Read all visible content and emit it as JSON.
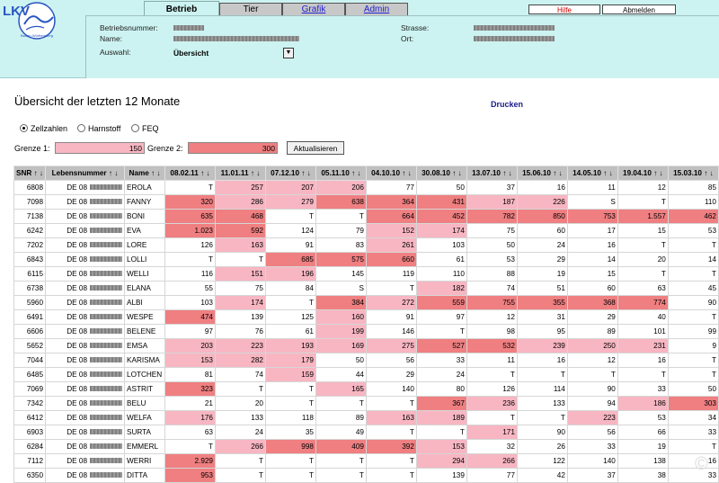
{
  "logo": {
    "text": "LKV",
    "subtext": "Baden-Württemberg"
  },
  "tabs": [
    {
      "label": "Betrieb",
      "active": true
    },
    {
      "label": "Tier",
      "active": false
    },
    {
      "label": "Grafik",
      "active": false
    },
    {
      "label": "Admin",
      "active": false
    }
  ],
  "top_buttons": {
    "hilfe": "Hilfe",
    "abmelden": "Abmelden"
  },
  "header_fields": {
    "betriebsnummer_label": "Betriebsnummer:",
    "name_label": "Name:",
    "auswahl_label": "Auswahl:",
    "strasse_label": "Strasse:",
    "ort_label": "Ort:",
    "auswahl_value": "Übersicht"
  },
  "page_title": "Übersicht der letzten 12 Monate",
  "print_link": "Drucken",
  "radios": [
    {
      "label": "Zellzahlen",
      "checked": true
    },
    {
      "label": "Harnstoff",
      "checked": false
    },
    {
      "label": "FEQ",
      "checked": false
    }
  ],
  "grenze": {
    "label1": "Grenze 1:",
    "value1": "150",
    "label2": "Grenze 2:",
    "value2": "300",
    "button": "Aktualisieren"
  },
  "table": {
    "headers": [
      "SNR ↑ ↓",
      "Lebensnummer ↑ ↓",
      "Name ↑ ↓",
      "08.02.11 ↑ ↓",
      "11.01.11 ↑ ↓",
      "07.12.10 ↑ ↓",
      "05.11.10 ↑ ↓",
      "04.10.10 ↑ ↓",
      "30.08.10 ↑ ↓",
      "13.07.10 ↑ ↓",
      "15.06.10 ↑ ↓",
      "14.05.10 ↑ ↓",
      "19.04.10 ↑ ↓",
      "15.03.10 ↑ ↓"
    ],
    "lebens_prefix": "DE 08",
    "rows": [
      [
        "6808",
        "EROLA",
        "T",
        "257",
        "207",
        "206",
        "77",
        "50",
        "37",
        "16",
        "11",
        "12",
        "85"
      ],
      [
        "7098",
        "FANNY",
        "320",
        "286",
        "279",
        "638",
        "364",
        "431",
        "187",
        "226",
        "S",
        "T",
        "110"
      ],
      [
        "7138",
        "BONI",
        "635",
        "468",
        "T",
        "T",
        "664",
        "452",
        "782",
        "850",
        "753",
        "1.557",
        "462"
      ],
      [
        "6242",
        "EVA",
        "1.023",
        "592",
        "124",
        "79",
        "152",
        "174",
        "75",
        "60",
        "17",
        "15",
        "53"
      ],
      [
        "7202",
        "LORE",
        "126",
        "163",
        "91",
        "83",
        "261",
        "103",
        "50",
        "24",
        "16",
        "T",
        "T"
      ],
      [
        "6843",
        "LOLLI",
        "T",
        "T",
        "685",
        "575",
        "660",
        "61",
        "53",
        "29",
        "14",
        "20",
        "14"
      ],
      [
        "6115",
        "WELLI",
        "116",
        "151",
        "196",
        "145",
        "119",
        "110",
        "88",
        "19",
        "15",
        "T",
        "T"
      ],
      [
        "6738",
        "ELANA",
        "55",
        "75",
        "84",
        "S",
        "T",
        "182",
        "74",
        "51",
        "60",
        "63",
        "45"
      ],
      [
        "5960",
        "ALBI",
        "103",
        "174",
        "T",
        "384",
        "272",
        "559",
        "755",
        "355",
        "368",
        "774",
        "90"
      ],
      [
        "6491",
        "WESPE",
        "474",
        "139",
        "125",
        "160",
        "91",
        "97",
        "12",
        "31",
        "29",
        "40",
        "T"
      ],
      [
        "6606",
        "BELENE",
        "97",
        "76",
        "61",
        "199",
        "146",
        "T",
        "98",
        "95",
        "89",
        "101",
        "99"
      ],
      [
        "5652",
        "EMSA",
        "203",
        "223",
        "193",
        "169",
        "275",
        "527",
        "532",
        "239",
        "250",
        "231",
        "9"
      ],
      [
        "7044",
        "KARISMA",
        "153",
        "282",
        "179",
        "50",
        "56",
        "33",
        "11",
        "16",
        "12",
        "16",
        "T"
      ],
      [
        "6485",
        "LOTCHEN",
        "81",
        "74",
        "159",
        "44",
        "29",
        "24",
        "T",
        "T",
        "T",
        "T",
        "T"
      ],
      [
        "7069",
        "ASTRIT",
        "323",
        "T",
        "T",
        "165",
        "140",
        "80",
        "126",
        "114",
        "90",
        "33",
        "50"
      ],
      [
        "7342",
        "BELU",
        "21",
        "20",
        "T",
        "T",
        "T",
        "367",
        "236",
        "133",
        "94",
        "186",
        "303"
      ],
      [
        "6412",
        "WELFA",
        "176",
        "133",
        "118",
        "89",
        "163",
        "189",
        "T",
        "T",
        "223",
        "53",
        "34"
      ],
      [
        "6903",
        "SURTA",
        "63",
        "24",
        "35",
        "49",
        "T",
        "T",
        "171",
        "90",
        "56",
        "66",
        "33"
      ],
      [
        "6284",
        "EMMERL",
        "T",
        "266",
        "998",
        "409",
        "392",
        "153",
        "32",
        "26",
        "33",
        "19",
        "T"
      ],
      [
        "7112",
        "WERRI",
        "2.929",
        "T",
        "T",
        "T",
        "T",
        "294",
        "266",
        "122",
        "140",
        "138",
        "16"
      ],
      [
        "6350",
        "DITTA",
        "953",
        "T",
        "T",
        "T",
        "T",
        "139",
        "77",
        "42",
        "37",
        "38",
        "33"
      ]
    ]
  },
  "colors": {
    "header_bg": "#ccf3f1",
    "above_grenze1": "#f7b6c2",
    "above_grenze2": "#ef7f81",
    "table_header": "#c0c0c0"
  }
}
